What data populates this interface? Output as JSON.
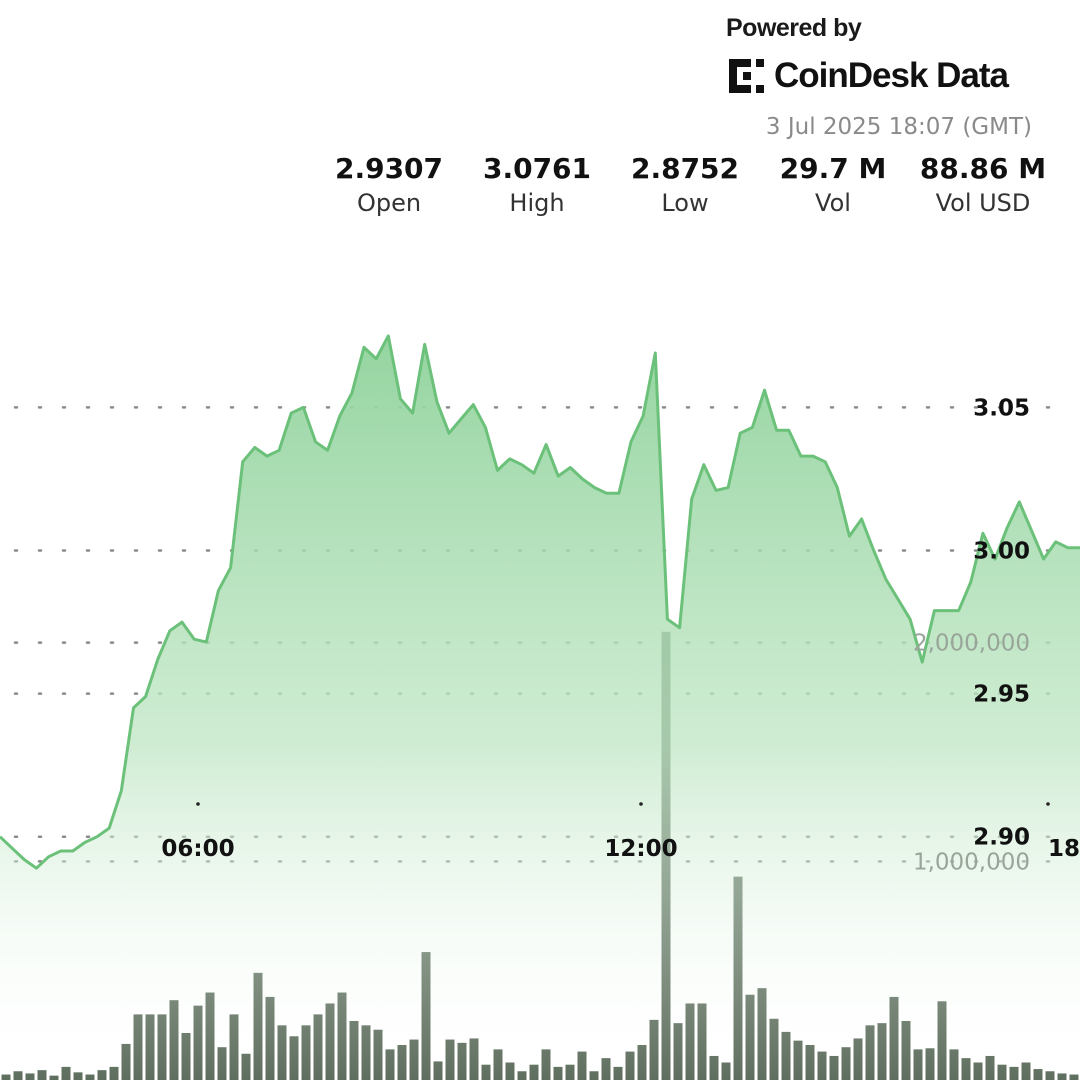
{
  "brand": {
    "powered_by": "Powered by",
    "logo_name": "CoinDesk Data",
    "logo_icon": "coindesk-logo-icon"
  },
  "timestamp": "3 Jul 2025 18:07 (GMT)",
  "stats": [
    {
      "value": "2.9307",
      "label": "Open"
    },
    {
      "value": "3.0761",
      "label": "High"
    },
    {
      "value": "2.8752",
      "label": "Low"
    },
    {
      "value": "29.7 M",
      "label": "Vol"
    },
    {
      "value": "88.86 M",
      "label": "Vol USD"
    }
  ],
  "colors": {
    "price_line": "#6cc17a",
    "fill_top": "#8fd29b",
    "volume_bar": "#5f6f5f",
    "grid_dot": "#8a8a8a"
  },
  "chart_data": {
    "type": "area",
    "x_ticks": [
      "06:00",
      "12:00",
      "18"
    ],
    "price_axis": {
      "ticks": [
        "3.05",
        "3.00",
        "2.95",
        "2.90"
      ],
      "tick_values": [
        3.05,
        3.0,
        2.95,
        2.9
      ],
      "range": [
        2.815,
        3.105
      ]
    },
    "volume_axis": {
      "ticks": [
        "2,000,000",
        "1,000,000"
      ],
      "tick_values": [
        2000000,
        1000000
      ],
      "range": [
        0,
        3000000
      ]
    },
    "grid": "dotted-horizontal",
    "price_series": [
      2.9,
      2.896,
      2.892,
      2.889,
      2.893,
      2.895,
      2.895,
      2.898,
      2.9,
      2.903,
      2.916,
      2.945,
      2.949,
      2.962,
      2.972,
      2.975,
      2.969,
      2.968,
      2.986,
      2.994,
      3.031,
      3.036,
      3.033,
      3.035,
      3.048,
      3.05,
      3.038,
      3.035,
      3.047,
      3.055,
      3.071,
      3.067,
      3.075,
      3.053,
      3.048,
      3.072,
      3.052,
      3.041,
      3.046,
      3.051,
      3.043,
      3.028,
      3.032,
      3.03,
      3.027,
      3.037,
      3.026,
      3.029,
      3.025,
      3.022,
      3.02,
      3.02,
      3.038,
      3.047,
      3.069,
      2.976,
      2.973,
      3.018,
      3.03,
      3.021,
      3.022,
      3.041,
      3.043,
      3.056,
      3.042,
      3.042,
      3.033,
      3.033,
      3.031,
      3.022,
      3.005,
      3.011,
      3.0,
      2.99,
      2.983,
      2.976,
      2.961,
      2.979,
      2.979,
      2.979,
      2.989,
      3.006,
      2.997,
      3.008,
      3.017,
      3.007,
      2.997,
      3.003,
      3.001,
      3.001
    ],
    "volume_series": [
      25000,
      40000,
      30000,
      45000,
      20000,
      60000,
      35000,
      25000,
      45000,
      60000,
      165000,
      300000,
      300000,
      300000,
      365000,
      215000,
      340000,
      400000,
      150000,
      300000,
      120000,
      490000,
      380000,
      250000,
      200000,
      250000,
      300000,
      350000,
      400000,
      270000,
      250000,
      230000,
      140000,
      160000,
      185000,
      585000,
      85000,
      185000,
      170000,
      190000,
      70000,
      140000,
      80000,
      40000,
      70000,
      140000,
      60000,
      70000,
      130000,
      40000,
      100000,
      60000,
      130000,
      160000,
      275000,
      2050000,
      260000,
      350000,
      350000,
      110000,
      80000,
      930000,
      390000,
      420000,
      280000,
      220000,
      180000,
      160000,
      130000,
      110000,
      150000,
      190000,
      250000,
      260000,
      380000,
      270000,
      140000,
      145000,
      360000,
      140000,
      100000,
      80000,
      110000,
      70000,
      60000,
      80000,
      50000,
      40000,
      30000,
      25000
    ]
  }
}
